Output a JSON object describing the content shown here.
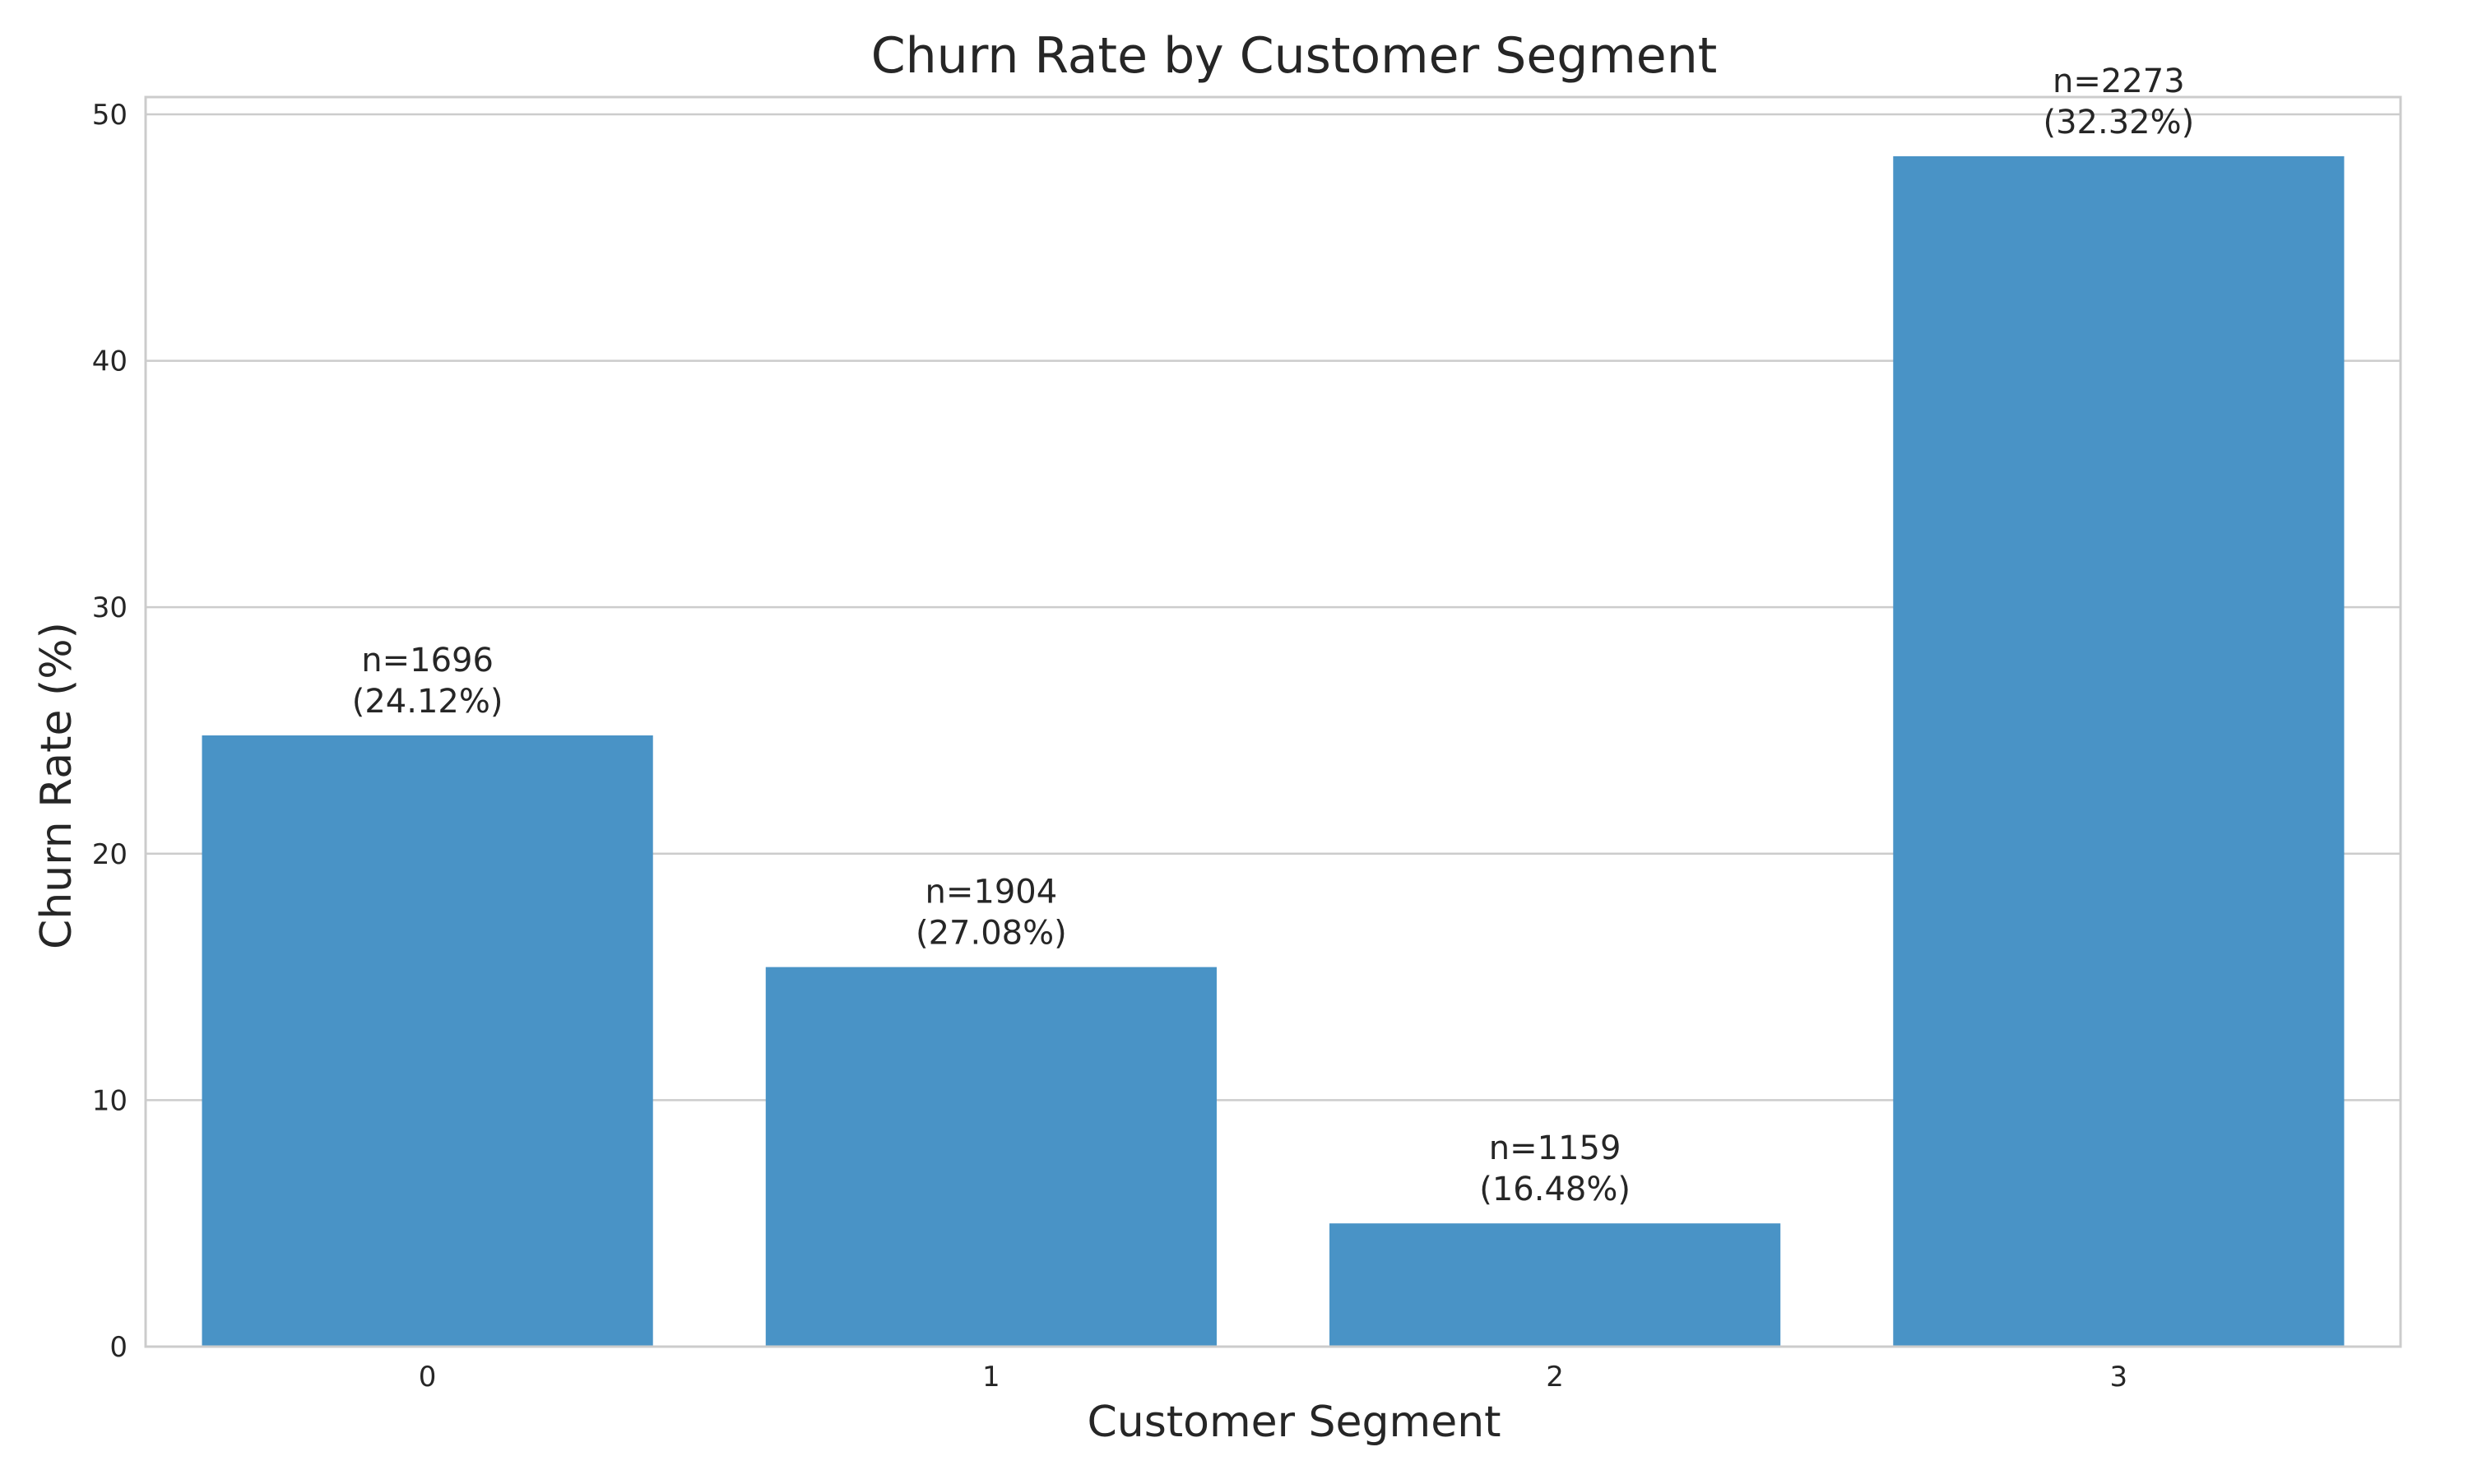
{
  "chart_data": {
    "type": "bar",
    "title": "Churn Rate by Customer Segment",
    "xlabel": "Customer Segment",
    "ylabel": "Churn Rate (%)",
    "categories": [
      "0",
      "1",
      "2",
      "3"
    ],
    "values": [
      24.8,
      15.4,
      5.0,
      48.3
    ],
    "bar_labels": [
      {
        "count": "n=1696",
        "share": "(24.12%)"
      },
      {
        "count": "n=1904",
        "share": "(27.08%)"
      },
      {
        "count": "n=1159",
        "share": "(16.48%)"
      },
      {
        "count": "n=2273",
        "share": "(32.32%)"
      }
    ],
    "ylim": [
      0,
      50.7
    ],
    "yticks": [
      0,
      10,
      20,
      30,
      40,
      50
    ],
    "grid": "horizontal",
    "legend": "none",
    "colors": {
      "bar": "#4993c6",
      "grid": "#cccccc",
      "frame": "#cccccc",
      "text": "#262626"
    }
  }
}
